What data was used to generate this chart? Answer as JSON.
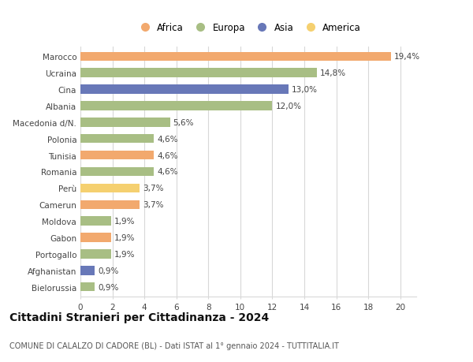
{
  "countries": [
    "Marocco",
    "Ucraina",
    "Cina",
    "Albania",
    "Macedonia d/N.",
    "Polonia",
    "Tunisia",
    "Romania",
    "Perù",
    "Camerun",
    "Moldova",
    "Gabon",
    "Portogallo",
    "Afghanistan",
    "Bielorussia"
  ],
  "values": [
    19.4,
    14.8,
    13.0,
    12.0,
    5.6,
    4.6,
    4.6,
    4.6,
    3.7,
    3.7,
    1.9,
    1.9,
    1.9,
    0.9,
    0.9
  ],
  "labels": [
    "19,4%",
    "14,8%",
    "13,0%",
    "12,0%",
    "5,6%",
    "4,6%",
    "4,6%",
    "4,6%",
    "3,7%",
    "3,7%",
    "1,9%",
    "1,9%",
    "1,9%",
    "0,9%",
    "0,9%"
  ],
  "continents": [
    "Africa",
    "Europa",
    "Asia",
    "Europa",
    "Europa",
    "Europa",
    "Africa",
    "Europa",
    "America",
    "Africa",
    "Europa",
    "Africa",
    "Europa",
    "Asia",
    "Europa"
  ],
  "colors": {
    "Africa": "#F2A96E",
    "Europa": "#A8BE84",
    "Asia": "#6878B8",
    "America": "#F5D070"
  },
  "xlim": [
    0,
    21
  ],
  "xticks": [
    0,
    2,
    4,
    6,
    8,
    10,
    12,
    14,
    16,
    18,
    20
  ],
  "title": "Cittadini Stranieri per Cittadinanza - 2024",
  "subtitle": "COMUNE DI CALALZO DI CADORE (BL) - Dati ISTAT al 1° gennaio 2024 - TUTTITALIA.IT",
  "background_color": "#ffffff",
  "grid_color": "#d8d8d8",
  "bar_height": 0.55,
  "label_fontsize": 7.5,
  "ytick_fontsize": 7.5,
  "xtick_fontsize": 7.5,
  "title_fontsize": 10,
  "subtitle_fontsize": 7,
  "legend_fontsize": 8.5
}
